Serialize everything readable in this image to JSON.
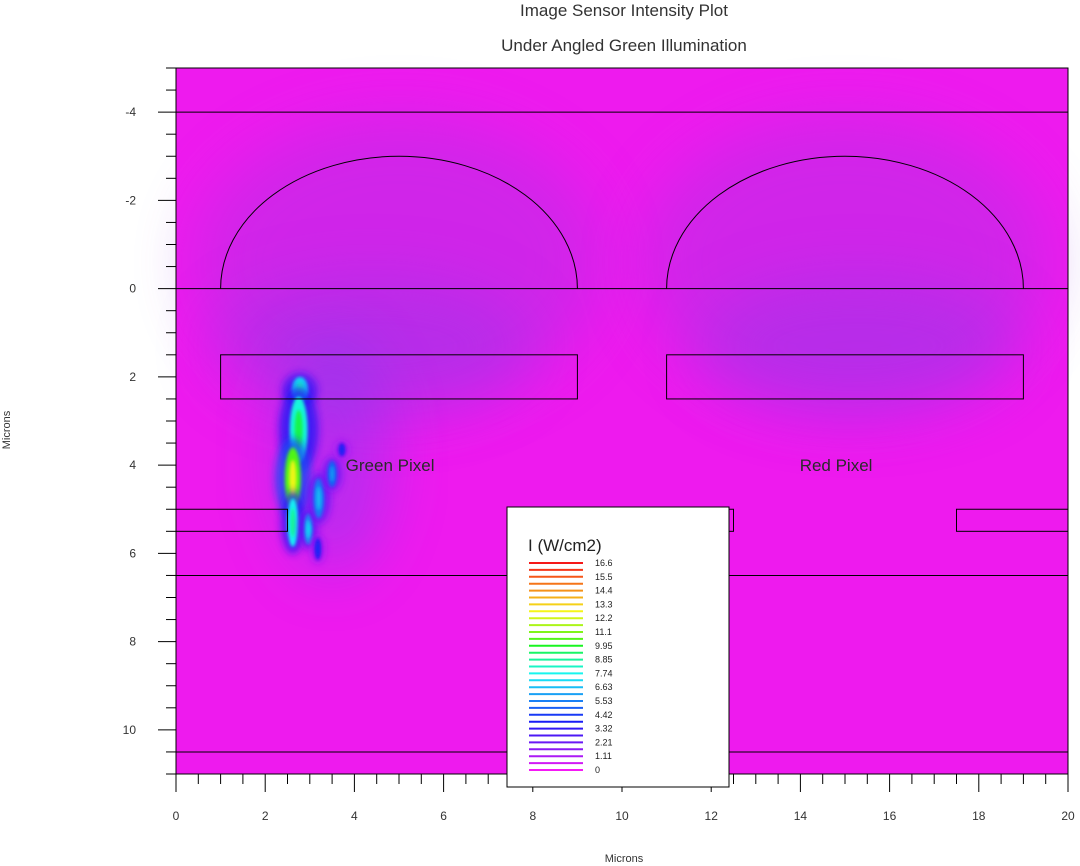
{
  "chart_data": {
    "type": "heatmap",
    "title": "Image Sensor Intensity Plot",
    "subtitle": "Under Angled Green Illumination",
    "xlabel": "Microns",
    "ylabel": "Microns",
    "xlim": [
      0,
      20
    ],
    "ylim": [
      -5,
      11
    ],
    "y_inverted": true,
    "x_ticks": [
      0,
      2,
      4,
      6,
      8,
      10,
      12,
      14,
      16,
      18,
      20
    ],
    "y_ticks": [
      -4,
      -2,
      0,
      2,
      4,
      6,
      8,
      10
    ],
    "y_tick_labels": [
      "-4",
      "-2",
      "0",
      "2",
      "4",
      "6",
      "8",
      "10"
    ],
    "background_color": "#ee1aee",
    "structures": {
      "horizontal_lines_y": [
        -5,
        -4,
        0,
        6.5,
        10.5
      ],
      "lenses": [
        {
          "cx": 5,
          "base_y": 0,
          "half_width": 4,
          "height": 3
        },
        {
          "cx": 15,
          "base_y": 0,
          "half_width": 4,
          "height": 3
        }
      ],
      "filter_bars": [
        {
          "x0": 1,
          "x1": 9,
          "y0": 1.5,
          "y1": 2.5
        },
        {
          "x0": 11,
          "x1": 19,
          "y0": 1.5,
          "y1": 2.5
        }
      ],
      "metal_bars": [
        {
          "x0": 0,
          "x1": 2.5,
          "y0": 5.0,
          "y1": 5.5
        },
        {
          "x0": 7.5,
          "x1": 12.5,
          "y0": 5.0,
          "y1": 5.5
        },
        {
          "x0": 17.5,
          "x1": 20,
          "y0": 5.0,
          "y1": 5.5
        }
      ]
    },
    "hotspots": [
      {
        "x": 2.78,
        "y": 2.3,
        "rx": 0.18,
        "ry": 0.3,
        "value": 7.0
      },
      {
        "x": 2.75,
        "y": 3.2,
        "rx": 0.2,
        "ry": 0.75,
        "value": 8.0
      },
      {
        "x": 2.62,
        "y": 4.3,
        "rx": 0.18,
        "ry": 0.7,
        "value": 10.5
      },
      {
        "x": 2.62,
        "y": 5.3,
        "rx": 0.12,
        "ry": 0.55,
        "value": 7.5
      },
      {
        "x": 2.97,
        "y": 5.45,
        "rx": 0.09,
        "ry": 0.35,
        "value": 6.0
      },
      {
        "x": 3.2,
        "y": 4.75,
        "rx": 0.12,
        "ry": 0.45,
        "value": 5.5
      },
      {
        "x": 3.5,
        "y": 4.2,
        "rx": 0.1,
        "ry": 0.3,
        "value": 5.0
      },
      {
        "x": 3.72,
        "y": 3.65,
        "rx": 0.07,
        "ry": 0.15,
        "value": 3.5
      },
      {
        "x": 3.18,
        "y": 5.9,
        "rx": 0.07,
        "ry": 0.25,
        "value": 3.5
      }
    ],
    "region_labels": [
      {
        "text": "Green Pixel",
        "x": 4.8,
        "y": 4.0
      },
      {
        "text": "Red Pixel",
        "x": 14.8,
        "y": 4.0
      }
    ],
    "legend": {
      "title": "I (W/cm2)",
      "levels": [
        "16.6",
        "15.5",
        "14.4",
        "13.3",
        "12.2",
        "11.1",
        "9.95",
        "8.85",
        "7.74",
        "6.63",
        "5.53",
        "4.42",
        "3.32",
        "2.21",
        "1.11",
        "0"
      ],
      "min": 0,
      "max": 16.6
    }
  }
}
